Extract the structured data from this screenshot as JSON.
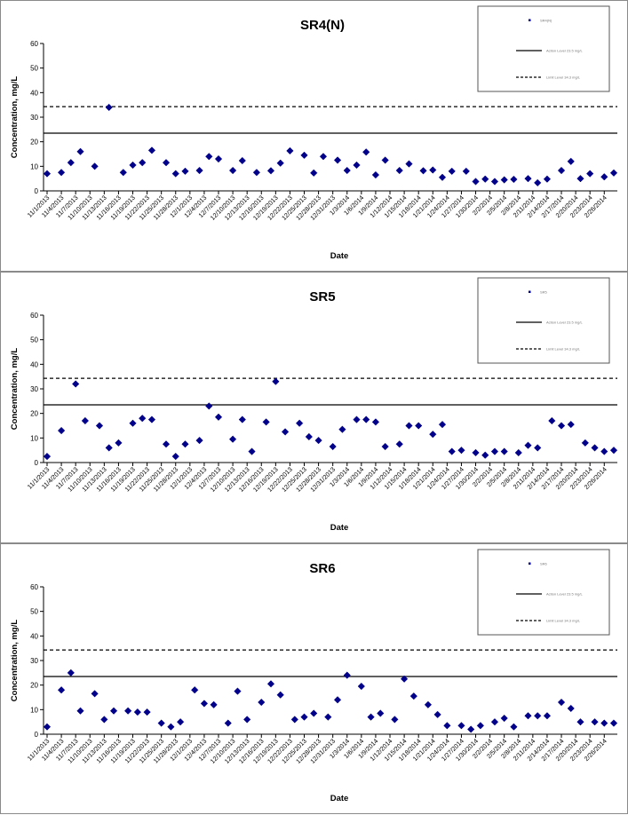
{
  "chart_data": [
    {
      "type": "scatter",
      "title": "SR4(N)",
      "xlabel": "Date",
      "ylabel": "Concentration, mg/L",
      "ylim": [
        0,
        60
      ],
      "yticks": [
        0,
        10,
        20,
        30,
        40,
        50,
        60
      ],
      "xlim": [
        "11/1/2013",
        "2/28/2014"
      ],
      "xticks": [
        "11/1/2013",
        "11/4/2013",
        "11/7/2013",
        "11/10/2013",
        "11/13/2013",
        "11/16/2013",
        "11/19/2013",
        "11/22/2013",
        "11/25/2013",
        "11/28/2013",
        "12/1/2013",
        "12/4/2013",
        "12/7/2013",
        "12/10/2013",
        "12/13/2013",
        "12/16/2013",
        "12/19/2013",
        "12/22/2013",
        "12/25/2013",
        "12/28/2013",
        "12/31/2013",
        "1/3/2014",
        "1/6/2014",
        "1/9/2014",
        "1/12/2014",
        "1/15/2014",
        "1/18/2014",
        "1/21/2014",
        "1/24/2014",
        "1/27/2014",
        "1/30/2014",
        "2/2/2014",
        "2/5/2014",
        "2/8/2014",
        "2/11/2014",
        "2/14/2014",
        "2/17/2014",
        "2/20/2014",
        "2/23/2014",
        "2/26/2014"
      ],
      "marker_color": "#00008B",
      "series": [
        {
          "x": [
            "11/1/2013",
            "11/4/2013",
            "11/6/2013",
            "11/8/2013",
            "11/11/2013",
            "11/14/2013",
            "11/17/2013",
            "11/19/2013",
            "11/21/2013",
            "11/23/2013",
            "11/26/2013",
            "11/28/2013",
            "11/30/2013",
            "12/3/2013",
            "12/5/2013",
            "12/7/2013",
            "12/10/2013",
            "12/12/2013",
            "12/15/2013",
            "12/18/2013",
            "12/20/2013",
            "12/22/2013",
            "12/25/2013",
            "12/27/2013",
            "12/29/2013",
            "1/1/2014",
            "1/3/2014",
            "1/5/2014",
            "1/7/2014",
            "1/9/2014",
            "1/11/2014",
            "1/14/2014",
            "1/16/2014",
            "1/19/2014",
            "1/21/2014",
            "1/23/2014",
            "1/25/2014",
            "1/28/2014",
            "1/30/2014",
            "2/1/2014",
            "2/3/2014",
            "2/5/2014",
            "2/7/2014",
            "2/10/2014",
            "2/12/2014",
            "2/14/2014",
            "2/17/2014",
            "2/19/2014",
            "2/21/2014",
            "2/23/2014",
            "2/26/2014",
            "2/28/2014"
          ],
          "y": [
            7,
            7.5,
            11.5,
            16,
            10,
            34,
            7.5,
            10.5,
            11.5,
            16.5,
            11.5,
            7,
            8,
            8.3,
            14,
            13,
            8.3,
            12.3,
            7.5,
            8.2,
            11.3,
            16.3,
            14.5,
            7.3,
            14,
            12.5,
            8.3,
            10.5,
            15.8,
            6.5,
            12.5,
            8.3,
            11,
            8.2,
            8.5,
            5.5,
            8,
            8,
            3.8,
            4.8,
            3.8,
            4.5,
            4.7,
            5,
            3.3,
            4.8,
            8.3,
            12,
            5,
            7,
            5.7,
            7.3
          ]
        }
      ],
      "hlines": [
        23.5,
        34.3
      ],
      "legend_position": "top-right",
      "legend_entries": [
        "SR4(N)",
        "Action Level 23.5 mg/L",
        "Limit Level 34.3 mg/L"
      ]
    },
    {
      "type": "scatter",
      "title": "SR5",
      "xlabel": "Date",
      "ylabel": "Concentration, mg/L",
      "ylim": [
        0,
        60
      ],
      "yticks": [
        0,
        10,
        20,
        30,
        40,
        50,
        60
      ],
      "xlim": [
        "11/1/2013",
        "2/28/2014"
      ],
      "xticks": [
        "11/1/2013",
        "11/4/2013",
        "11/7/2013",
        "11/10/2013",
        "11/13/2013",
        "11/16/2013",
        "11/19/2013",
        "11/22/2013",
        "11/25/2013",
        "11/28/2013",
        "12/1/2013",
        "12/4/2013",
        "12/7/2013",
        "12/10/2013",
        "12/13/2013",
        "12/16/2013",
        "12/19/2013",
        "12/22/2013",
        "12/25/2013",
        "12/28/2013",
        "12/31/2013",
        "1/3/2014",
        "1/6/2014",
        "1/9/2014",
        "1/12/2014",
        "1/15/2014",
        "1/18/2014",
        "1/21/2014",
        "1/24/2014",
        "1/27/2014",
        "1/30/2014",
        "2/2/2014",
        "2/5/2014",
        "2/8/2014",
        "2/11/2014",
        "2/14/2014",
        "2/17/2014",
        "2/20/2014",
        "2/23/2014",
        "2/26/2014"
      ],
      "marker_color": "#00008B",
      "series": [
        {
          "x": [
            "11/1/2013",
            "11/4/2013",
            "11/7/2013",
            "11/9/2013",
            "11/12/2013",
            "11/14/2013",
            "11/16/2013",
            "11/19/2013",
            "11/21/2013",
            "11/23/2013",
            "11/26/2013",
            "11/28/2013",
            "11/30/2013",
            "12/3/2013",
            "12/5/2013",
            "12/7/2013",
            "12/10/2013",
            "12/12/2013",
            "12/14/2013",
            "12/17/2013",
            "12/19/2013",
            "12/21/2013",
            "12/24/2013",
            "12/26/2013",
            "12/28/2013",
            "12/31/2013",
            "1/2/2014",
            "1/5/2014",
            "1/7/2014",
            "1/9/2014",
            "1/11/2014",
            "1/14/2014",
            "1/16/2014",
            "1/18/2014",
            "1/21/2014",
            "1/23/2014",
            "1/25/2014",
            "1/27/2014",
            "1/30/2014",
            "2/1/2014",
            "2/3/2014",
            "2/5/2014",
            "2/8/2014",
            "2/10/2014",
            "2/12/2014",
            "2/15/2014",
            "2/17/2014",
            "2/19/2014",
            "2/22/2014",
            "2/24/2014",
            "2/26/2014",
            "2/28/2014"
          ],
          "y": [
            2.5,
            13,
            32,
            17,
            15,
            6,
            8,
            16,
            18,
            17.5,
            7.5,
            2.5,
            7.5,
            9,
            23,
            18.5,
            9.5,
            17.5,
            4.5,
            16.5,
            33,
            12.5,
            16,
            10.5,
            9,
            6.5,
            13.5,
            17.5,
            17.5,
            16.5,
            6.5,
            7.5,
            15,
            15,
            11.5,
            15.5,
            4.5,
            5,
            4,
            3,
            4.5,
            4.5,
            4,
            7,
            6,
            17,
            15,
            15.5,
            8,
            6,
            4.5,
            5
          ]
        }
      ],
      "hlines": [
        23.5,
        34.3
      ],
      "legend_position": "top-right",
      "legend_entries": [
        "SR5",
        "Action Level 23.5 mg/L",
        "Limit Level 34.3 mg/L"
      ]
    },
    {
      "type": "scatter",
      "title": "SR6",
      "xlabel": "Date",
      "ylabel": "Concentration, mg/L",
      "ylim": [
        0,
        60
      ],
      "yticks": [
        0,
        10,
        20,
        30,
        40,
        50,
        60
      ],
      "xlim": [
        "11/1/2013",
        "2/28/2014"
      ],
      "xticks": [
        "11/1/2013",
        "11/4/2013",
        "11/7/2013",
        "11/10/2013",
        "11/13/2013",
        "11/16/2013",
        "11/19/2013",
        "11/22/2013",
        "11/25/2013",
        "11/28/2013",
        "12/1/2013",
        "12/4/2013",
        "12/7/2013",
        "12/10/2013",
        "12/13/2013",
        "12/16/2013",
        "12/19/2013",
        "12/22/2013",
        "12/25/2013",
        "12/28/2013",
        "12/31/2013",
        "1/3/2014",
        "1/6/2014",
        "1/9/2014",
        "1/12/2014",
        "1/15/2014",
        "1/18/2014",
        "1/21/2014",
        "1/24/2014",
        "1/27/2014",
        "1/30/2014",
        "2/2/2014",
        "2/5/2014",
        "2/8/2014",
        "2/11/2014",
        "2/14/2014",
        "2/17/2014",
        "2/20/2014",
        "2/23/2014",
        "2/26/2014"
      ],
      "marker_color": "#00008B",
      "series": [
        {
          "x": [
            "11/1/2013",
            "11/4/2013",
            "11/6/2013",
            "11/8/2013",
            "11/11/2013",
            "11/13/2013",
            "11/15/2013",
            "11/18/2013",
            "11/20/2013",
            "11/22/2013",
            "11/25/2013",
            "11/27/2013",
            "11/29/2013",
            "12/2/2013",
            "12/4/2013",
            "12/6/2013",
            "12/9/2013",
            "12/11/2013",
            "12/13/2013",
            "12/16/2013",
            "12/18/2013",
            "12/20/2013",
            "12/23/2013",
            "12/25/2013",
            "12/27/2013",
            "12/30/2013",
            "1/1/2014",
            "1/3/2014",
            "1/6/2014",
            "1/8/2014",
            "1/10/2014",
            "1/13/2014",
            "1/15/2014",
            "1/17/2014",
            "1/20/2014",
            "1/22/2014",
            "1/24/2014",
            "1/27/2014",
            "1/29/2014",
            "1/31/2014",
            "2/3/2014",
            "2/5/2014",
            "2/7/2014",
            "2/10/2014",
            "2/12/2014",
            "2/14/2014",
            "2/17/2014",
            "2/19/2014",
            "2/21/2014",
            "2/24/2014",
            "2/26/2014",
            "2/28/2014"
          ],
          "y": [
            3,
            18,
            25,
            9.5,
            16.5,
            6,
            9.5,
            9.5,
            9,
            9,
            4.5,
            3,
            5,
            18,
            12.5,
            12,
            4.5,
            17.5,
            6,
            13,
            20.5,
            16,
            6,
            7,
            8.5,
            7,
            14,
            24,
            19.5,
            7,
            8.5,
            6,
            22.5,
            15.5,
            12,
            8,
            3.5,
            3.5,
            2,
            3.5,
            5,
            6.5,
            3,
            7.5,
            7.5,
            7.5,
            13,
            10.5,
            5,
            5,
            4.5,
            4.5
          ]
        }
      ],
      "hlines": [
        23.5,
        34.3
      ],
      "legend_position": "top-right",
      "legend_entries": [
        "SR6",
        "Action Level 23.5 mg/L",
        "Limit Level 34.3 mg/L"
      ]
    }
  ]
}
